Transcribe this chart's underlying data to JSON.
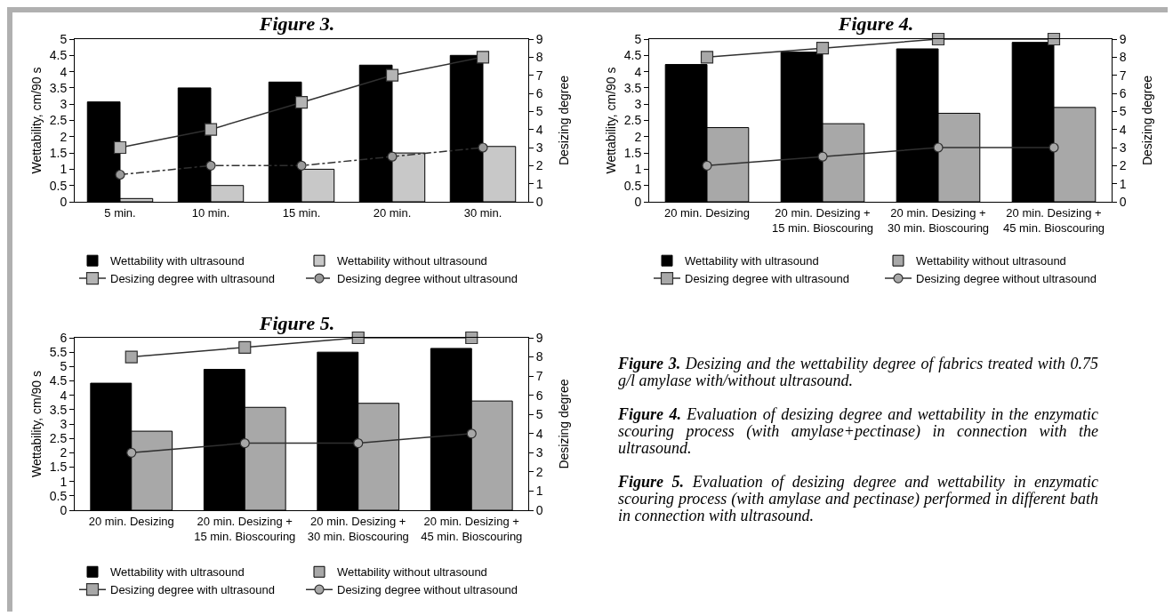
{
  "chart_data": [
    {
      "type": "bar",
      "title": "Figure 3.",
      "ylabel": "Wettability, cm/90 s",
      "y2label": "Desizing degree",
      "categories": [
        "5 min.",
        "10 min.",
        "15 min.",
        "20 min.",
        "30 min."
      ],
      "ylim": [
        0,
        5
      ],
      "yticks": [
        0,
        0.5,
        1,
        1.5,
        2,
        2.5,
        3,
        3.5,
        4,
        4.5,
        5
      ],
      "y2lim": [
        0,
        9
      ],
      "y2ticks": [
        0,
        1,
        2,
        3,
        4,
        5,
        6,
        7,
        8,
        9
      ],
      "legend": "bottom",
      "series": [
        {
          "name": "Wettability with ultrasound",
          "type": "bar",
          "color": "#000000",
          "values": [
            3.07,
            3.5,
            3.68,
            4.2,
            4.5
          ]
        },
        {
          "name": "Wettability without ultrasound",
          "type": "bar",
          "color": "#c8c8c8",
          "values": [
            0.1,
            0.5,
            1.0,
            1.5,
            1.7
          ]
        },
        {
          "name": "Desizing degree with ultrasound",
          "type": "line",
          "axis": "y2",
          "color": "#b4b4b4",
          "marker": "square",
          "line_style": "solid",
          "values": [
            3,
            4,
            5.5,
            7,
            8
          ]
        },
        {
          "name": "Desizing degree without ultrasound",
          "type": "line",
          "axis": "y2",
          "color": "#9a9a9a",
          "marker": "circle",
          "line_style": "dashed",
          "values": [
            1.5,
            2,
            2,
            2.5,
            3
          ]
        }
      ]
    },
    {
      "type": "bar",
      "title": "Figure 4.",
      "ylabel": "Wettability, cm/90 s",
      "y2label": "Desizing degree",
      "categories": [
        "20 min. Desizing",
        "20 min. Desizing +\n15 min. Bioscouring",
        "20 min. Desizing +\n30 min. Bioscouring",
        "20 min. Desizing +\n45 min. Bioscouring"
      ],
      "ylim": [
        0,
        5
      ],
      "yticks": [
        0,
        0.5,
        1,
        1.5,
        2,
        2.5,
        3,
        3.5,
        4,
        4.5,
        5
      ],
      "y2lim": [
        0,
        9
      ],
      "y2ticks": [
        0,
        1,
        2,
        3,
        4,
        5,
        6,
        7,
        8,
        9
      ],
      "legend": "bottom",
      "series": [
        {
          "name": "Wettability with ultrasound",
          "type": "bar",
          "color": "#000000",
          "values": [
            4.22,
            4.6,
            4.7,
            4.9
          ]
        },
        {
          "name": "Wettability without ultrasound",
          "type": "bar",
          "color": "#a8a8a8",
          "values": [
            2.28,
            2.4,
            2.72,
            2.9
          ]
        },
        {
          "name": "Desizing degree with ultrasound",
          "type": "line",
          "axis": "y2",
          "color": "#a8a8a8",
          "marker": "square",
          "line_style": "solid",
          "values": [
            8,
            8.5,
            9,
            9
          ]
        },
        {
          "name": "Desizing degree without ultrasound",
          "type": "line",
          "axis": "y2",
          "color": "#a8a8a8",
          "marker": "circle",
          "line_style": "solid",
          "values": [
            2,
            2.5,
            3,
            3
          ]
        }
      ]
    },
    {
      "type": "bar",
      "title": "Figure 5.",
      "ylabel": "Wettability, cm/90 s",
      "y2label": "Desizing degree",
      "categories": [
        "20 min. Desizing",
        "20 min. Desizing +\n15 min. Bioscouring",
        "20 min. Desizing +\n30 min. Bioscouring",
        "20 min. Desizing +\n45 min. Bioscouring"
      ],
      "ylim": [
        0,
        6
      ],
      "yticks": [
        0,
        0.5,
        1,
        1.5,
        2,
        2.5,
        3,
        3.5,
        4,
        4.5,
        5,
        5.5,
        6
      ],
      "y2lim": [
        0,
        9
      ],
      "y2ticks": [
        0,
        1,
        2,
        3,
        4,
        5,
        6,
        7,
        8,
        9
      ],
      "legend": "bottom",
      "series": [
        {
          "name": "Wettability with ultrasound",
          "type": "bar",
          "color": "#000000",
          "values": [
            4.42,
            4.9,
            5.5,
            5.63
          ]
        },
        {
          "name": "Wettability without ultrasound",
          "type": "bar",
          "color": "#a8a8a8",
          "values": [
            2.75,
            3.58,
            3.72,
            3.8
          ]
        },
        {
          "name": "Desizing degree with ultrasound",
          "type": "line",
          "axis": "y2",
          "color": "#a8a8a8",
          "marker": "square",
          "line_style": "solid",
          "values": [
            8,
            8.5,
            9,
            9
          ]
        },
        {
          "name": "Desizing degree without ultrasound",
          "type": "line",
          "axis": "y2",
          "color": "#a8a8a8",
          "marker": "circle",
          "line_style": "solid",
          "values": [
            3,
            3.5,
            3.5,
            4
          ]
        }
      ]
    },
    {
      "type": "other",
      "annotations": [
        "Figure 3.",
        "Desizing and the wettability degree of fabrics treated with 0.75 g/l amylase with/without ultrasound.",
        "Figure 4.",
        "Evaluation of desizing degree and wettability in the enzymatic scouring process (with amylase+pectinase) in connection with the ultrasound.",
        "Figure 5.",
        "Evaluation of desizing degree and wettability in enzymatic scouring process (with amylase and pectinase) performed in different bath in connection with ultrasound."
      ]
    }
  ]
}
